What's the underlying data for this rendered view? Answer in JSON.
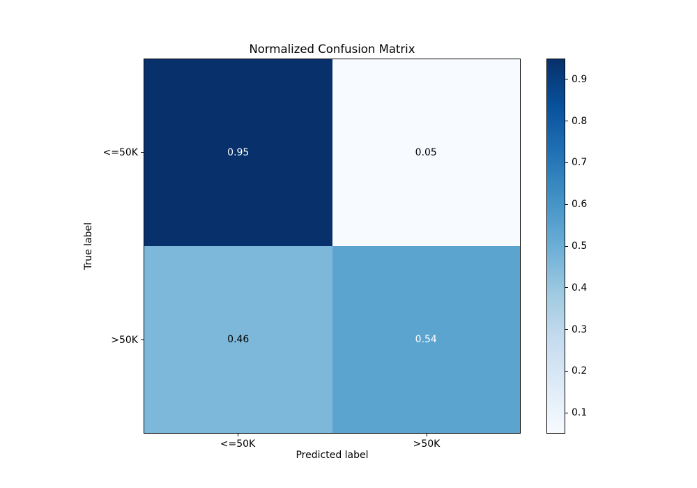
{
  "chart_data": {
    "type": "heatmap",
    "title": "Normalized Confusion Matrix",
    "xlabel": "Predicted label",
    "ylabel": "True label",
    "x_categories": [
      "<=50K",
      ">50K"
    ],
    "y_categories": [
      "<=50K",
      ">50K"
    ],
    "values": [
      [
        0.95,
        0.05
      ],
      [
        0.46,
        0.54
      ]
    ],
    "value_labels": [
      [
        "0.95",
        "0.05"
      ],
      [
        "0.46",
        "0.54"
      ]
    ],
    "colormap": "Blues",
    "cell_colors": [
      [
        "#08306b",
        "#f7fbff"
      ],
      [
        "#7db8da",
        "#5ca4d0"
      ]
    ],
    "cell_text_colors": [
      [
        "#ffffff",
        "#000000"
      ],
      [
        "#000000",
        "#ffffff"
      ]
    ],
    "axis_color": "#000000",
    "background_color": "#ffffff",
    "legend_position": "right-colorbar",
    "grid": false,
    "colorbar": {
      "range": [
        0.05,
        0.95
      ],
      "ticks": [
        0.9,
        0.8,
        0.7,
        0.6,
        0.5,
        0.4,
        0.3,
        0.2,
        0.1
      ],
      "tick_labels": [
        "0.9",
        "0.8",
        "0.7",
        "0.6",
        "0.5",
        "0.4",
        "0.3",
        "0.2",
        "0.1"
      ],
      "gradient_stops": [
        "#f7fbff",
        "#deebf7",
        "#c6dbef",
        "#9ecae1",
        "#6baed6",
        "#4292c6",
        "#2171b5",
        "#08519c",
        "#08306b"
      ]
    }
  }
}
